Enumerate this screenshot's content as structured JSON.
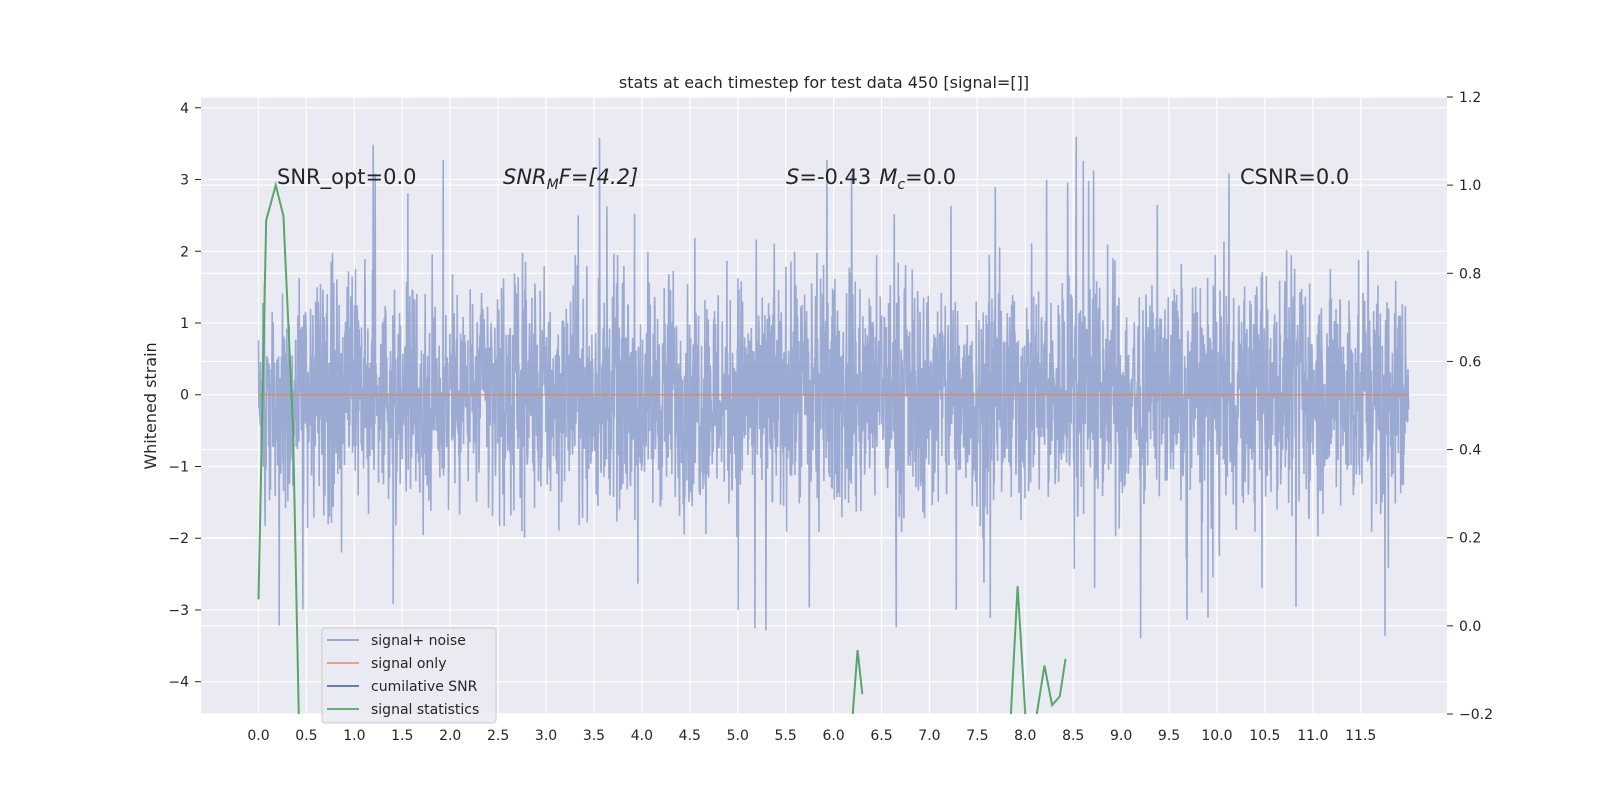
{
  "chart_data": {
    "type": "line",
    "title": "stats at each timestep for test data 450 [signal=[]]",
    "ylabel": "Whitened strain",
    "xlabel": "",
    "xlim": [
      -0.6,
      12.4
    ],
    "ylim": [
      -4.45,
      4.15
    ],
    "y2lim": [
      -0.2,
      1.2
    ],
    "x_ticks": [
      "0.0",
      "0.5",
      "1.0",
      "1.5",
      "2.0",
      "2.5",
      "3.0",
      "3.5",
      "4.0",
      "4.5",
      "5.0",
      "5.5",
      "6.0",
      "6.5",
      "7.0",
      "7.5",
      "8.0",
      "8.5",
      "9.0",
      "9.5",
      "10.0",
      "10.5",
      "11.0",
      "11.5"
    ],
    "y_ticks": [
      "4",
      "3",
      "2",
      "1",
      "0",
      "−1",
      "−2",
      "−3",
      "−4"
    ],
    "y2_ticks": [
      "1.2",
      "1.0",
      "0.8",
      "0.6",
      "0.4",
      "0.2",
      "0.0",
      "−0.2"
    ],
    "grid": true,
    "legend_position": "lower-left",
    "series": [
      {
        "name": "signal+ noise",
        "color": "#8c9fcc",
        "x_range": [
          0.0,
          12.0
        ],
        "typical_amplitude": 1.6,
        "peak_max": 3.8,
        "peak_min": -3.6
      },
      {
        "name": "signal only",
        "color": "#dd8452",
        "x": [
          0.0,
          12.0
        ],
        "y": [
          0.0,
          0.0
        ]
      },
      {
        "name": "cumilative SNR",
        "color": "#4c72b0",
        "x": [],
        "y": []
      },
      {
        "name": "signal statistics",
        "color": "#55a868",
        "axis": "right",
        "segments": [
          {
            "x": [
              0.0,
              0.08,
              0.18,
              0.26,
              0.36,
              0.42
            ],
            "y": [
              0.06,
              0.92,
              1.0,
              0.93,
              0.45,
              -0.2
            ]
          },
          {
            "x": [
              6.2,
              6.25,
              6.3
            ],
            "y": [
              -0.2,
              -0.055,
              -0.155
            ]
          },
          {
            "x": [
              7.85,
              7.92,
              8.0
            ],
            "y": [
              -0.2,
              0.09,
              -0.2
            ]
          },
          {
            "x": [
              8.12,
              8.2,
              8.28,
              8.36,
              8.42
            ],
            "y": [
              -0.2,
              -0.09,
              -0.18,
              -0.16,
              -0.075
            ]
          }
        ]
      }
    ],
    "annotations": {
      "snr_opt": "SNR_opt=0.0",
      "snr_mf_base": "SNR",
      "snr_mf_sub": "M",
      "snr_mf_rest": "F=[4.2]",
      "s_name": "S",
      "s_value": "=-0.43",
      "mc_name": "M",
      "mc_sub": "c",
      "mc_value": "=0.0",
      "csnr": "CSNR=0.0"
    }
  },
  "colors": {
    "background": "#eaeaf2",
    "grid": "#ffffff",
    "text": "#262626"
  }
}
